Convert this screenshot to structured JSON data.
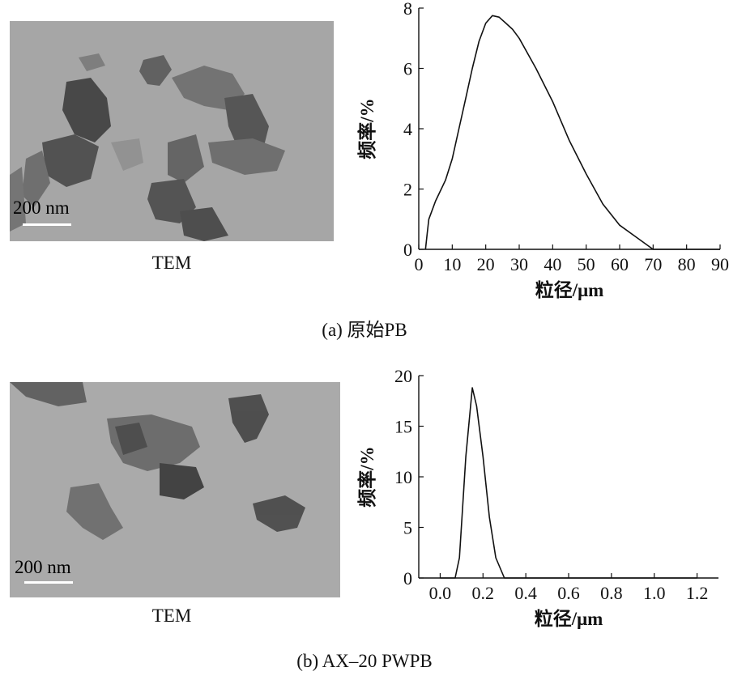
{
  "panels": [
    {
      "caption": "(a) 原始PB",
      "tem": {
        "label": "TEM",
        "scale": "200 nm"
      },
      "chart_data": {
        "type": "line",
        "title": "",
        "xlabel": "粒径/μm",
        "ylabel": "频率/%",
        "xlim": [
          0,
          90
        ],
        "ylim": [
          0,
          8
        ],
        "xticks": [
          0,
          10,
          20,
          30,
          40,
          50,
          60,
          70,
          80,
          90
        ],
        "xtick_labels": [
          "0",
          "10",
          "20",
          "30",
          "40",
          "50",
          "60",
          "70",
          "80",
          "90"
        ],
        "yticks": [
          0,
          2,
          4,
          6,
          8
        ],
        "ytick_labels": [
          "0",
          "2",
          "4",
          "6",
          "8"
        ],
        "grid": false,
        "series": [
          {
            "x": [
              2,
              2.5,
              3,
              5,
              8,
              10,
              12,
              14,
              16,
              18,
              20,
              22,
              24,
              26,
              28,
              30,
              35,
              40,
              45,
              50,
              55,
              60,
              65,
              70,
              80,
              90
            ],
            "y": [
              0,
              0.5,
              1.0,
              1.6,
              2.3,
              3.0,
              4.0,
              5.0,
              6.0,
              6.9,
              7.5,
              7.75,
              7.7,
              7.5,
              7.3,
              7.0,
              6.0,
              4.9,
              3.6,
              2.5,
              1.5,
              0.8,
              0.4,
              0.0,
              0.0,
              0.0
            ]
          }
        ]
      }
    },
    {
      "caption": "(b) AX–20 PWPB",
      "tem": {
        "label": "TEM",
        "scale": "200 nm"
      },
      "chart_data": {
        "type": "line",
        "title": "",
        "xlabel": "粒径/μm",
        "ylabel": "频率/%",
        "xlim": [
          -0.1,
          1.3
        ],
        "ylim": [
          0,
          20
        ],
        "xticks": [
          0.0,
          0.2,
          0.4,
          0.6,
          0.8,
          1.0,
          1.2
        ],
        "xtick_labels": [
          "0.0",
          "0.2",
          "0.4",
          "0.6",
          "0.8",
          "1.0",
          "1.2"
        ],
        "yticks": [
          0,
          5,
          10,
          15,
          20
        ],
        "ytick_labels": [
          "0",
          "5",
          "10",
          "15",
          "20"
        ],
        "grid": false,
        "series": [
          {
            "x": [
              0.0,
              0.07,
              0.09,
              0.12,
              0.15,
              0.17,
              0.2,
              0.23,
              0.26,
              0.3,
              1.2
            ],
            "y": [
              0,
              0,
              2,
              12,
              18.8,
              17,
              12,
              6,
              2,
              0,
              0
            ]
          }
        ]
      }
    }
  ]
}
